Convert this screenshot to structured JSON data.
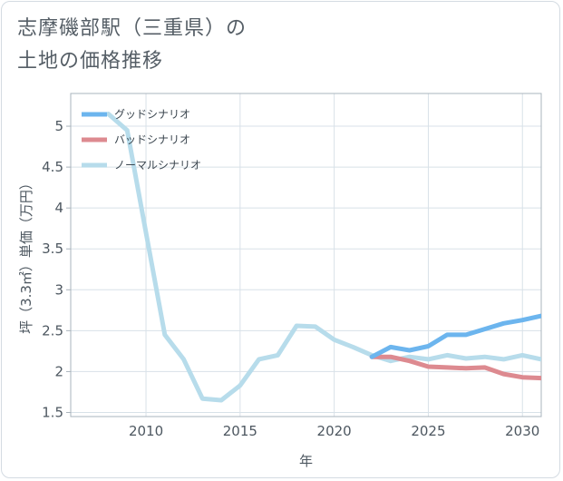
{
  "title_lines": [
    "志摩磯部駅（三重県）の",
    "土地の価格推移"
  ],
  "chart_data": {
    "type": "line",
    "title": "志摩磯部駅（三重県）の 土地の価格推移",
    "xlabel": "年",
    "ylabel": "坪（3.3㎡）単価（万円）",
    "xlim": [
      2006,
      2031
    ],
    "ylim": [
      1.45,
      5.4
    ],
    "x_ticks": [
      2010,
      2015,
      2020,
      2025,
      2030
    ],
    "x_tick_labels": [
      "2010",
      "2015",
      "2020",
      "2025",
      "2030"
    ],
    "y_ticks": [
      1.5,
      2,
      2.5,
      3,
      3.5,
      4,
      4.5,
      5
    ],
    "y_tick_labels": [
      "1.5",
      "2",
      "2.5",
      "3",
      "3.5",
      "4",
      "4.5",
      "5"
    ],
    "grid": true,
    "legend_position": "top-left",
    "series": [
      {
        "name": "グッドシナリオ",
        "color": "#6cb5ee",
        "x": [
          2022,
          2023,
          2024,
          2025,
          2026,
          2027,
          2028,
          2029,
          2030,
          2031
        ],
        "values": [
          2.18,
          2.3,
          2.26,
          2.31,
          2.45,
          2.45,
          2.52,
          2.59,
          2.63,
          2.68
        ]
      },
      {
        "name": "バッドシナリオ",
        "color": "#dd8a90",
        "x": [
          2022,
          2023,
          2024,
          2025,
          2026,
          2027,
          2028,
          2029,
          2030,
          2031
        ],
        "values": [
          2.18,
          2.18,
          2.13,
          2.06,
          2.05,
          2.04,
          2.05,
          1.97,
          1.93,
          1.92
        ]
      },
      {
        "name": "ノーマルシナリオ",
        "color": "#b7dceb",
        "x": [
          2008,
          2009,
          2010,
          2011,
          2012,
          2013,
          2014,
          2015,
          2016,
          2017,
          2018,
          2019,
          2020,
          2021,
          2022,
          2023,
          2024,
          2025,
          2026,
          2027,
          2028,
          2029,
          2030,
          2031
        ],
        "values": [
          5.15,
          4.95,
          3.7,
          2.45,
          2.15,
          1.67,
          1.65,
          1.83,
          2.15,
          2.2,
          2.56,
          2.55,
          2.39,
          2.3,
          2.2,
          2.13,
          2.18,
          2.15,
          2.2,
          2.16,
          2.18,
          2.15,
          2.2,
          2.15
        ]
      }
    ]
  }
}
